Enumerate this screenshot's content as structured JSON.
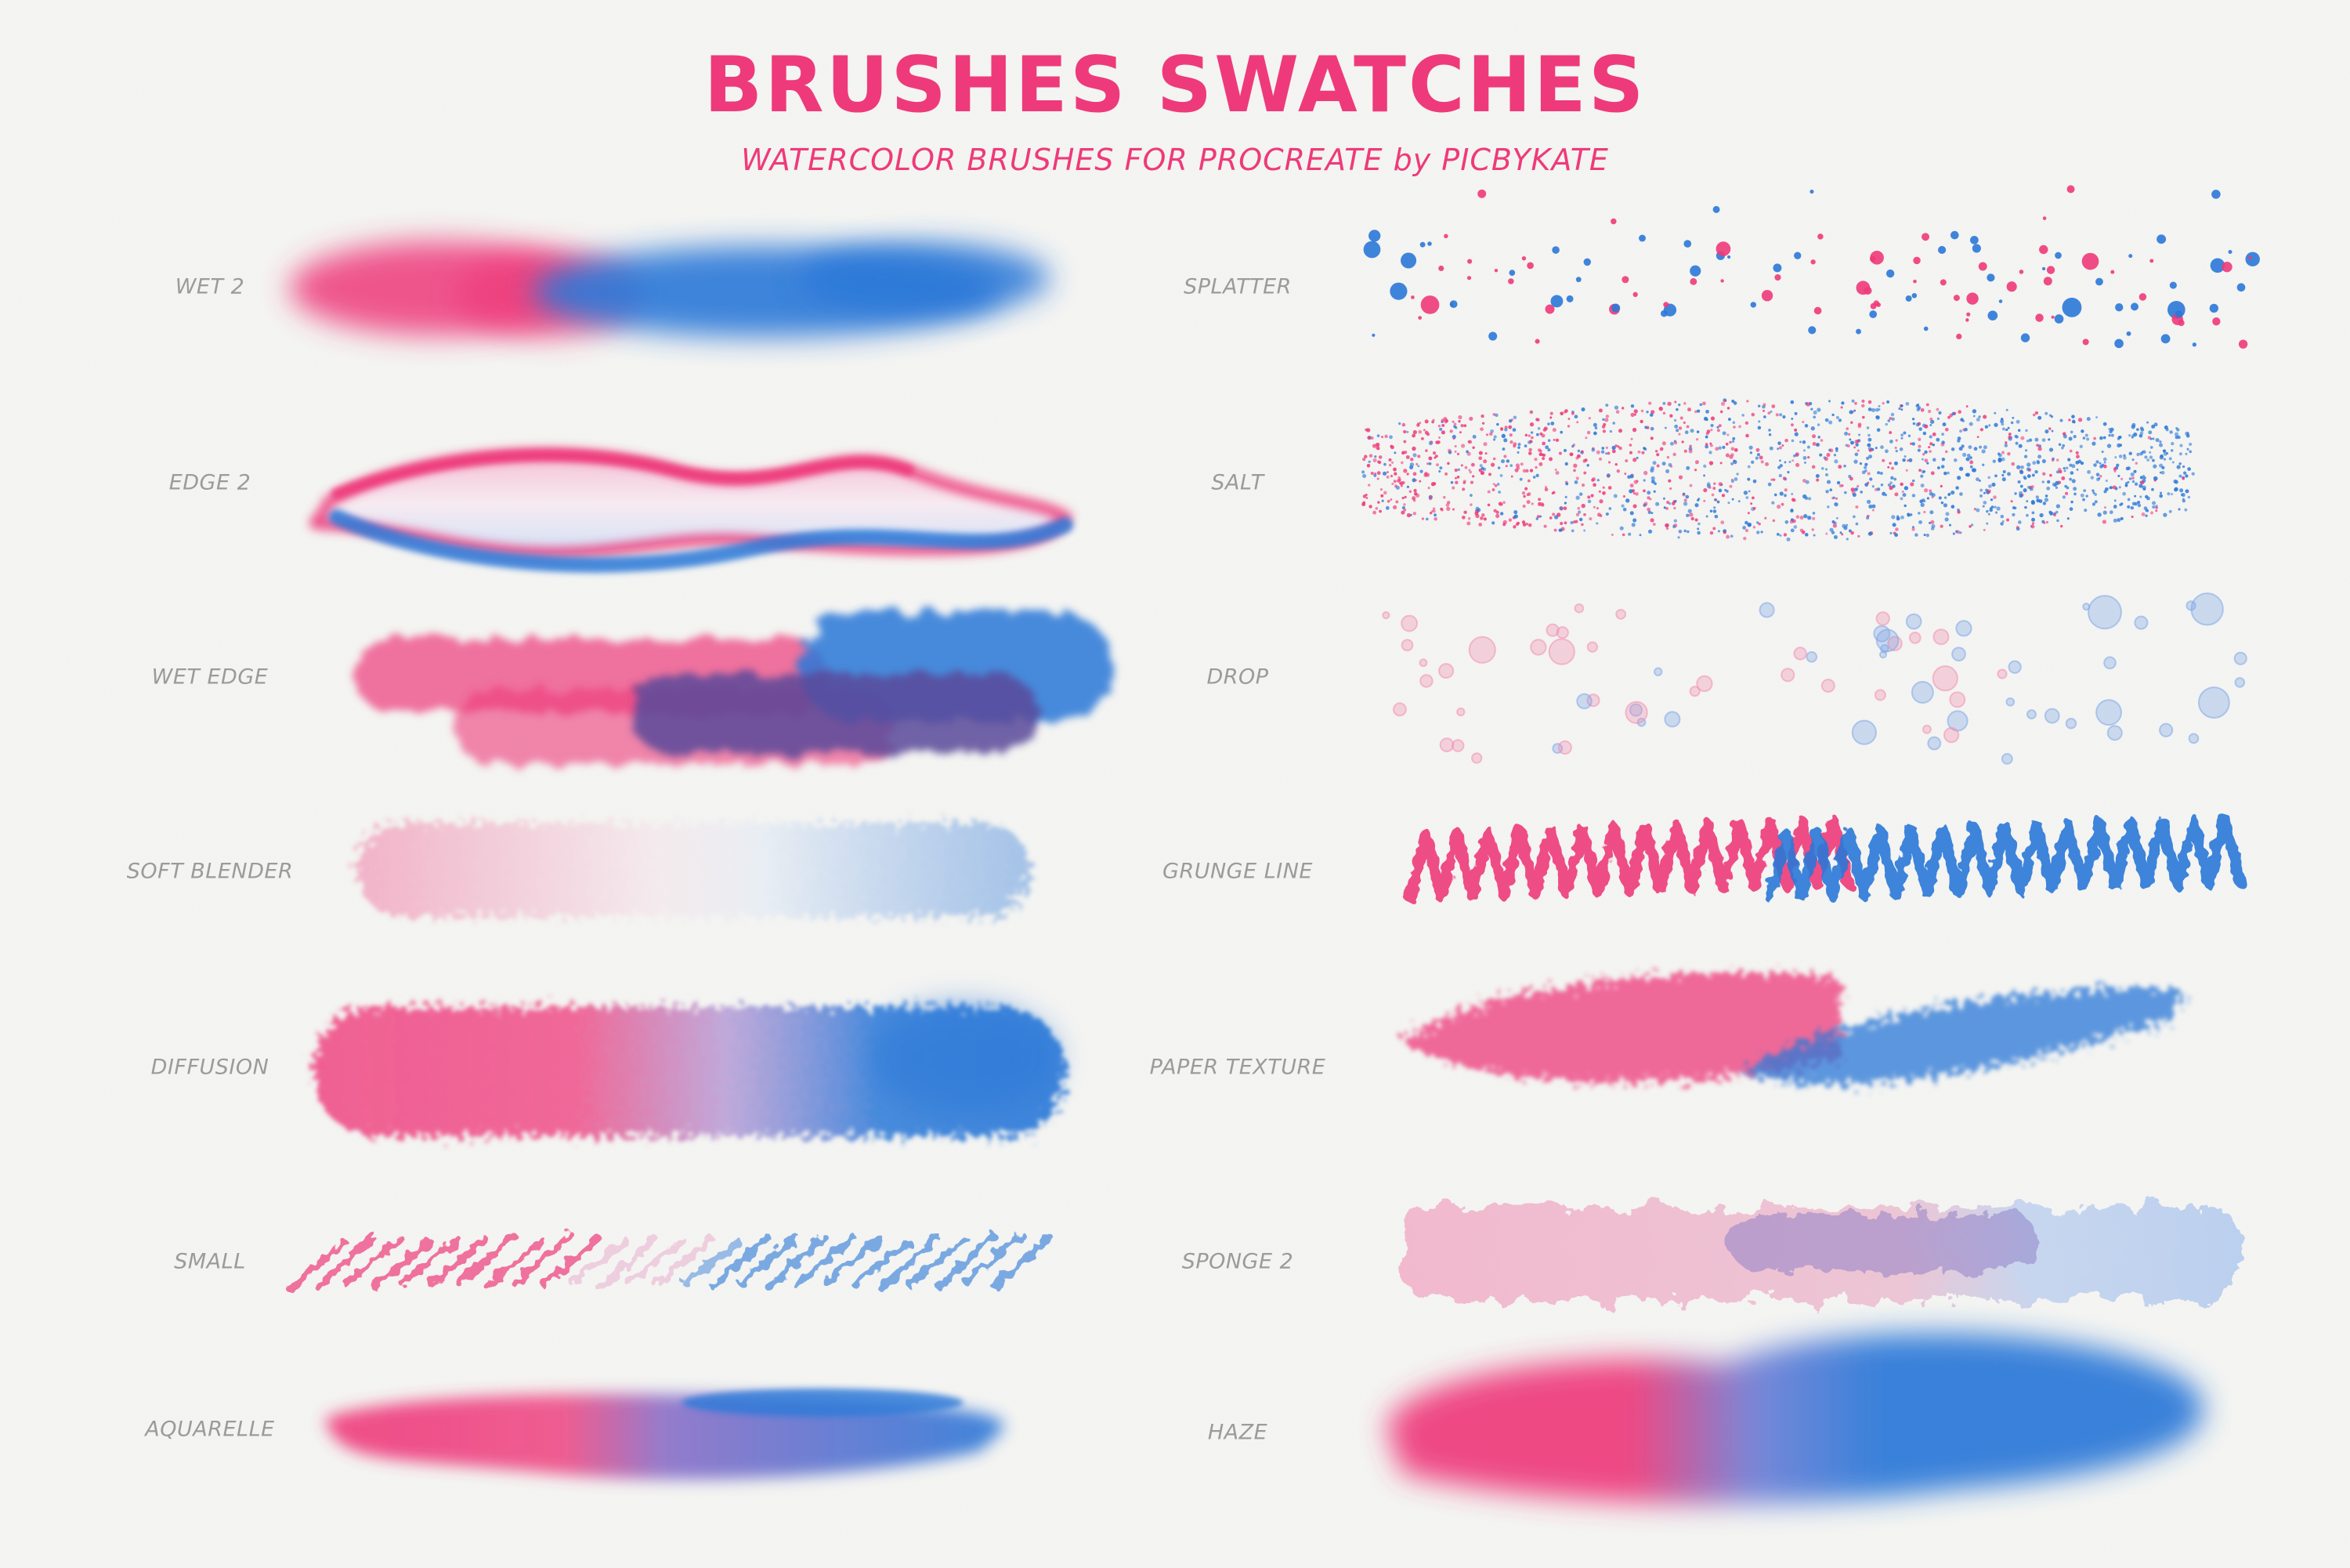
{
  "header": {
    "title": "BRUSHES SWATCHES",
    "subtitle": "WATERCOLOR BRUSHES FOR PROCREATE  by  PICBYKATE"
  },
  "colors": {
    "pink": "#ee3a7a",
    "blue": "#2b78d8",
    "purple": "#5a4a9a",
    "label": "#9b9b9b",
    "background": "#f6f6f4"
  },
  "brushes": {
    "left": [
      {
        "name": "WET 2",
        "style": "wet"
      },
      {
        "name": "EDGE 2",
        "style": "edge"
      },
      {
        "name": "WET EDGE",
        "style": "wetedge"
      },
      {
        "name": "SOFT BLENDER",
        "style": "soft"
      },
      {
        "name": "DIFFUSION",
        "style": "diffusion"
      },
      {
        "name": "SMALL",
        "style": "small"
      },
      {
        "name": "AQUARELLE",
        "style": "aquarelle"
      }
    ],
    "right": [
      {
        "name": "SPLATTER",
        "style": "splatter"
      },
      {
        "name": "SALT",
        "style": "salt"
      },
      {
        "name": "DROP",
        "style": "drop"
      },
      {
        "name": "GRUNGE LINE",
        "style": "grunge"
      },
      {
        "name": "PAPER TEXTURE",
        "style": "paper"
      },
      {
        "name": "SPONGE 2",
        "style": "sponge"
      },
      {
        "name": "HAZE",
        "style": "haze"
      }
    ]
  }
}
